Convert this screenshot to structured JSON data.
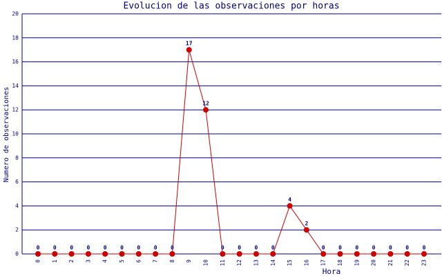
{
  "chart_data": {
    "type": "line",
    "title": "Evolucion de las observaciones por horas",
    "x_label": "Hora",
    "y_label": "Numero de observaciones",
    "categories": [
      "0",
      "1",
      "2",
      "3",
      "4",
      "5",
      "6",
      "7",
      "8",
      "9",
      "10",
      "11",
      "12",
      "13",
      "14",
      "15",
      "16",
      "17",
      "18",
      "19",
      "20",
      "21",
      "22",
      "23"
    ],
    "series": [
      {
        "name": "observaciones",
        "color": "#cc0000",
        "values": [
          0,
          0,
          0,
          0,
          0,
          0,
          0,
          0,
          0,
          17,
          12,
          0,
          0,
          0,
          0,
          4,
          2,
          0,
          0,
          0,
          0,
          0,
          0,
          0
        ]
      }
    ],
    "ylim": [
      0,
      20
    ],
    "yticks": [
      0,
      2,
      4,
      6,
      8,
      10,
      12,
      14,
      16,
      18,
      20
    ],
    "grid": true,
    "data_labels": true
  }
}
